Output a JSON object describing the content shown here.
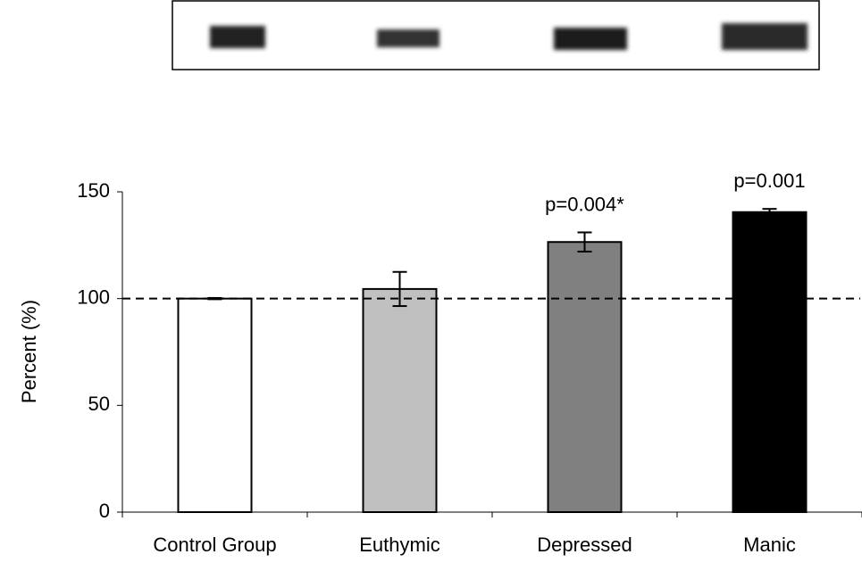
{
  "chart_data": {
    "type": "bar",
    "categories": [
      "Control Group",
      "Euthymic",
      "Depressed",
      "Manic"
    ],
    "values": [
      100,
      104.5,
      126.5,
      140.5
    ],
    "errors": [
      0.3,
      8,
      4.5,
      1.5
    ],
    "colors": [
      "#ffffff",
      "#c0c0c0",
      "#808080",
      "#000000"
    ],
    "annotations": [
      null,
      null,
      "p=0.004*",
      "p=0.001"
    ],
    "y_label": "Percent (%)",
    "ylim": [
      0,
      150
    ],
    "yticks": [
      0,
      50,
      100,
      150
    ],
    "reference_line": 100
  }
}
